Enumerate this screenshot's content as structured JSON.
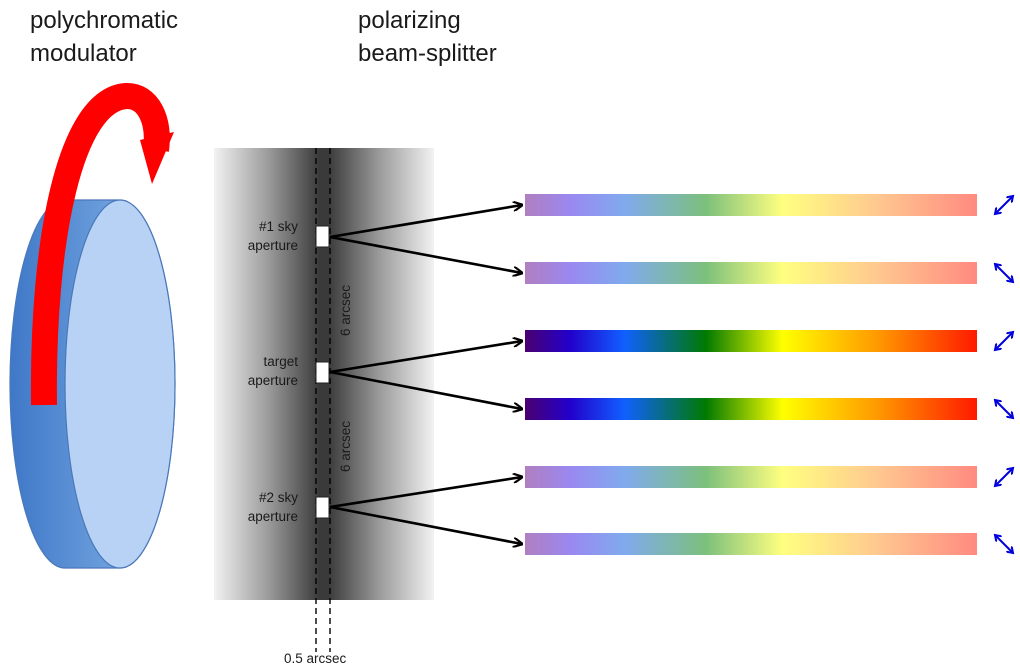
{
  "labels": {
    "modulator_line1": "polychromatic",
    "modulator_line2": "modulator",
    "splitter_line1": "polarizing",
    "splitter_line2": "beam-splitter"
  },
  "apertures": [
    {
      "line1": "#1 sky",
      "line2": "aperture"
    },
    {
      "line1": "target",
      "line2": "aperture"
    },
    {
      "line1": "#2 sky",
      "line2": "aperture"
    }
  ],
  "separation_label_1": "6 arcsec",
  "separation_label_2": "6 arcsec",
  "slit_width_label": "0.5 arcsec",
  "spectra": [
    {
      "style": "faint",
      "polarization": "diagonal-right"
    },
    {
      "style": "faint",
      "polarization": "diagonal-left"
    },
    {
      "style": "strong",
      "polarization": "diagonal-right"
    },
    {
      "style": "strong",
      "polarization": "diagonal-left"
    },
    {
      "style": "faint",
      "polarization": "diagonal-right"
    },
    {
      "style": "faint",
      "polarization": "diagonal-left"
    }
  ],
  "colors": {
    "modulator_face": "#b7d2f5",
    "modulator_side": "#6b9edc",
    "modulator_edge": "#4a78b8",
    "rotation_arrow": "#ff0000",
    "polarization_arrow": "#0000dd",
    "slit_plate": "#404040"
  },
  "icons": {
    "rotation": "curved-arrow-icon",
    "polarization": "double-headed-arrow-icon"
  }
}
